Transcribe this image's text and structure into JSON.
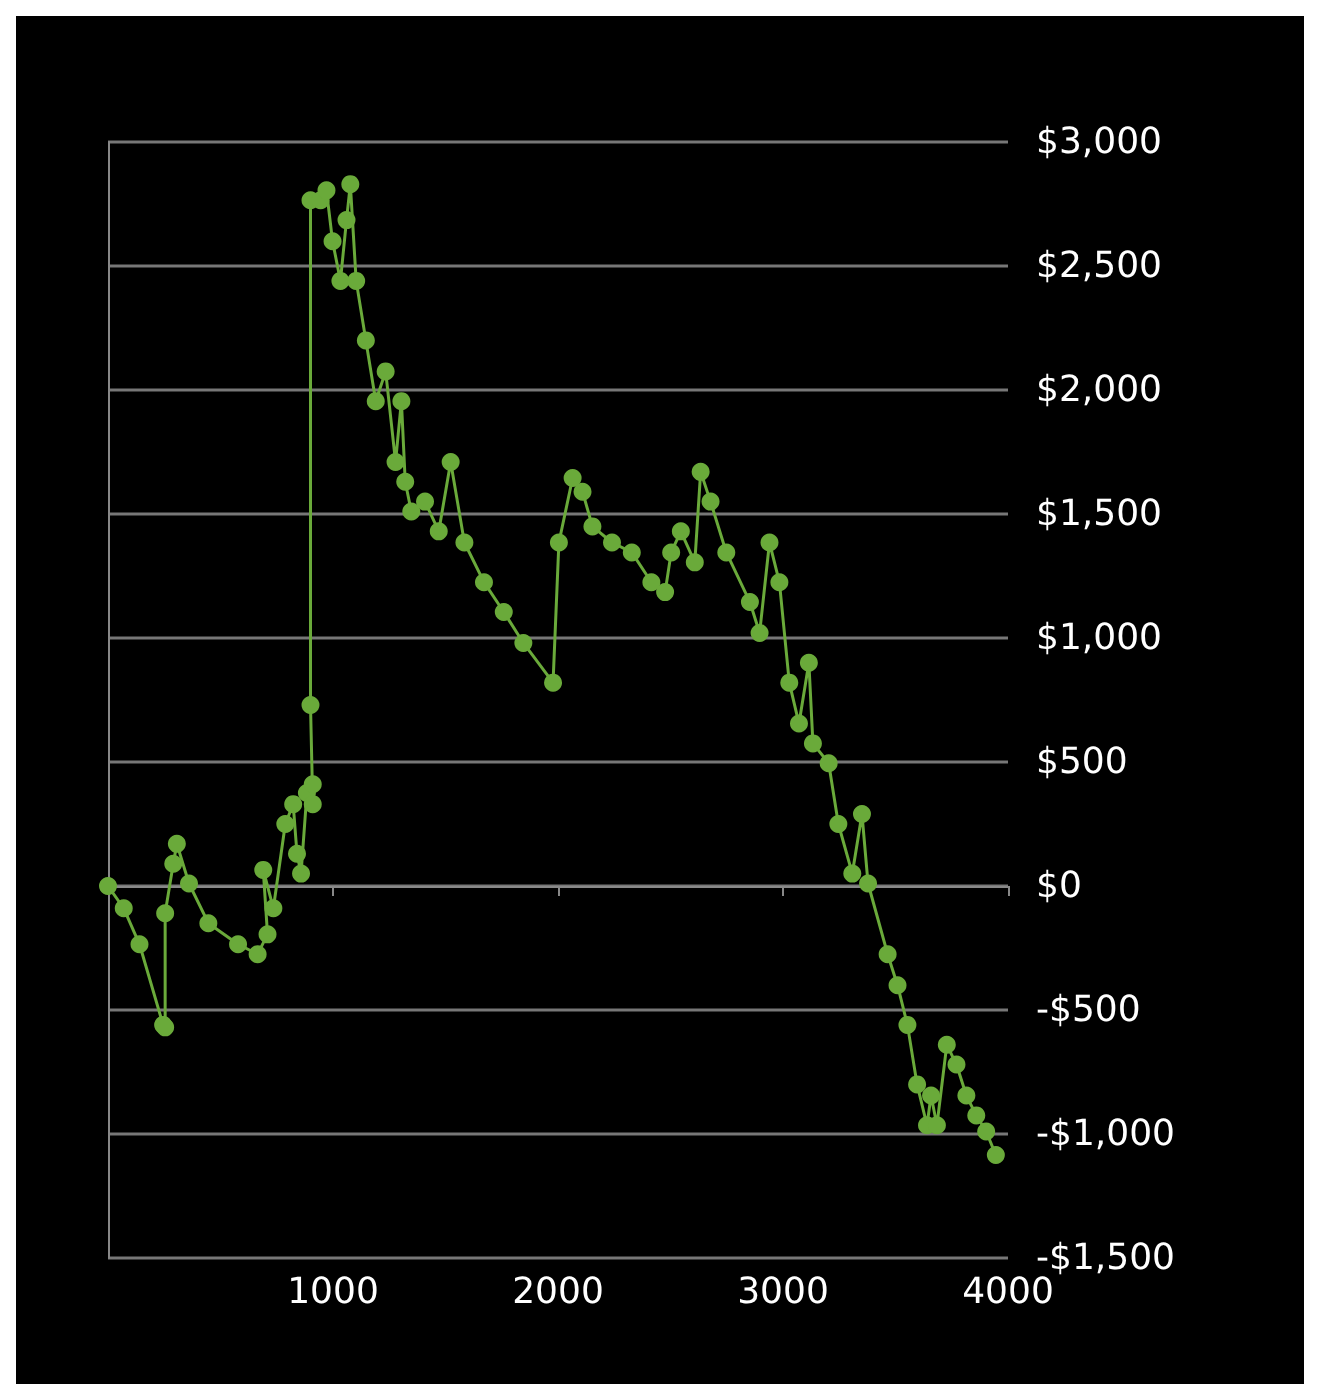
{
  "chart_data": {
    "type": "line",
    "marker": "circle",
    "grid": "y",
    "xlim": [
      0,
      4000
    ],
    "xticks": [
      1000,
      2000,
      3000,
      4000
    ],
    "ylim": [
      -1500,
      3000
    ],
    "yticks": [
      {
        "value": -1500,
        "label": "-$1,500"
      },
      {
        "value": -1000,
        "label": "-$1,000"
      },
      {
        "value": -500,
        "label": "-$500"
      },
      {
        "value": 0,
        "label": "$0"
      },
      {
        "value": 500,
        "label": "$500"
      },
      {
        "value": 1000,
        "label": "$1,000"
      },
      {
        "value": 1500,
        "label": "$1,500"
      },
      {
        "value": 2000,
        "label": "$2,000"
      },
      {
        "value": 2500,
        "label": "$2,500"
      },
      {
        "value": 3000,
        "label": "$3,000"
      }
    ],
    "x": [
      0,
      70,
      140,
      245,
      254,
      254,
      290,
      306,
      360,
      446,
      578,
      665,
      709,
      690,
      735,
      788,
      823,
      840,
      858,
      884,
      910,
      910,
      900,
      900,
      945,
      971,
      998,
      1033,
      1060,
      1077,
      1103,
      1146,
      1190,
      1234,
      1278,
      1304,
      1321,
      1348,
      1409,
      1470,
      1523,
      1584,
      1671,
      1759,
      1846,
      1978,
      2004,
      2065,
      2109,
      2153,
      2240,
      2328,
      2415,
      2476,
      2503,
      2546,
      2608,
      2634,
      2678,
      2748,
      2853,
      2896,
      2940,
      2984,
      3028,
      3071,
      3115,
      3133,
      3203,
      3246,
      3308,
      3351,
      3378,
      3465,
      3509,
      3553,
      3596,
      3640,
      3658,
      3684,
      3728,
      3771,
      3815,
      3859,
      3903,
      3946
    ],
    "series": [
      {
        "color": "#6aaa3a",
        "values": [
          0,
          -90,
          -235,
          -560,
          -570,
          -110,
          90,
          170,
          10,
          -150,
          -235,
          -275,
          -195,
          65,
          -90,
          250,
          330,
          130,
          50,
          375,
          410,
          330,
          730,
          2765,
          2765,
          2805,
          2600,
          2440,
          2685,
          2830,
          2440,
          2200,
          1955,
          2075,
          1710,
          1955,
          1630,
          1510,
          1550,
          1430,
          1710,
          1385,
          1225,
          1105,
          980,
          820,
          1385,
          1645,
          1590,
          1450,
          1385,
          1345,
          1225,
          1185,
          1345,
          1430,
          1305,
          1670,
          1550,
          1345,
          1145,
          1020,
          1385,
          1225,
          820,
          655,
          900,
          575,
          495,
          250,
          50,
          290,
          10,
          -275,
          -400,
          -560,
          -800,
          -965,
          -845,
          -965,
          -640,
          -720,
          -845,
          -925,
          -990,
          -1085
        ]
      }
    ]
  }
}
